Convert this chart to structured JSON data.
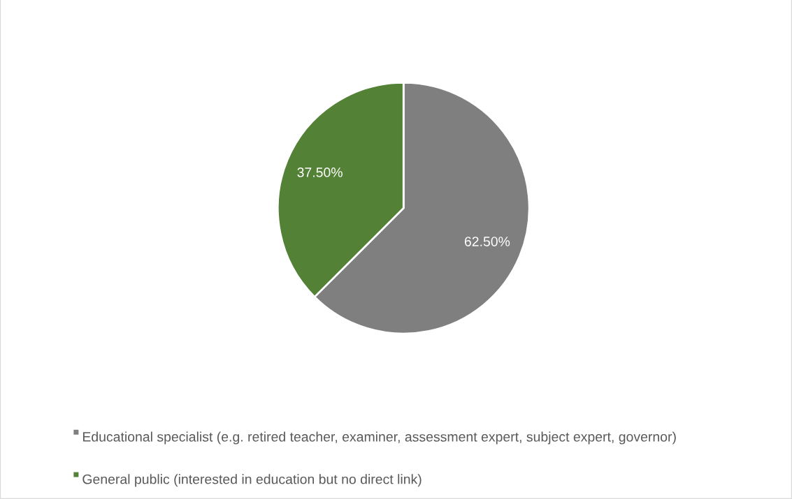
{
  "chart_data": {
    "type": "pie",
    "categories": [
      "Educational specialist (e.g. retired teacher, examiner, assessment expert, subject expert, governor)",
      "General public (interested in education but no direct link)"
    ],
    "values": [
      62.5,
      37.5
    ],
    "colors": [
      "#7f7f7f",
      "#538135"
    ],
    "value_labels": [
      "62.50%",
      "37.50%"
    ],
    "legend": "bottom"
  }
}
